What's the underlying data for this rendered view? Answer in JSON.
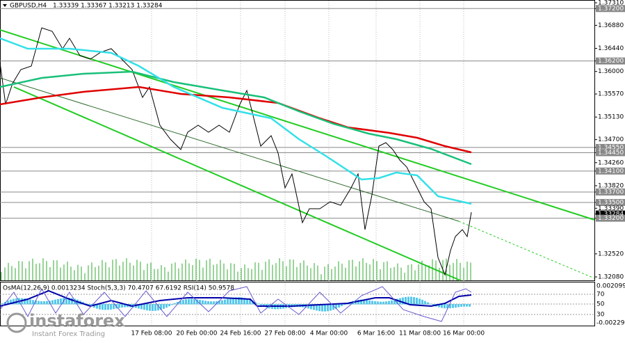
{
  "header": {
    "symbol": "GBPUSD,H4",
    "ohlc": "1.33339 1.33367 1.33213 1.33284"
  },
  "indicator": {
    "caption": "OsMA(12,26,9) 0.0013234  Stoch(5,3,3) 70.4707 67.6192  RSI(14) 50.9578",
    "scale": [
      "0.0020993",
      "70",
      "50",
      "30",
      "-0.002290"
    ]
  },
  "price_axis": [
    {
      "value": 1.3731,
      "label": "1.37310",
      "level": false
    },
    {
      "value": 1.372,
      "label": "1.37200",
      "level": true
    },
    {
      "value": 1.3688,
      "label": "1.36880",
      "level": false
    },
    {
      "value": 1.3644,
      "label": "1.36440",
      "level": false
    },
    {
      "value": 1.362,
      "label": "1.36200",
      "level": true
    },
    {
      "value": 1.36,
      "label": "1.36000",
      "level": false
    },
    {
      "value": 1.3557,
      "label": "1.35570",
      "level": false
    },
    {
      "value": 1.3513,
      "label": "1.35130",
      "level": false
    },
    {
      "value": 1.347,
      "label": "1.34700",
      "level": false
    },
    {
      "value": 1.3455,
      "label": "1.34550",
      "level": true
    },
    {
      "value": 1.3445,
      "label": "1.34450",
      "level": true
    },
    {
      "value": 1.3426,
      "label": "1.34260",
      "level": false
    },
    {
      "value": 1.341,
      "label": "1.34100",
      "level": true
    },
    {
      "value": 1.3382,
      "label": "1.33820",
      "level": false
    },
    {
      "value": 1.337,
      "label": "1.33700",
      "level": true
    },
    {
      "value": 1.335,
      "label": "1.33500",
      "level": true
    },
    {
      "value": 1.3339,
      "label": "1.33390",
      "level": false
    },
    {
      "value": 1.3328,
      "label": "1.33284",
      "level": false,
      "current": true
    },
    {
      "value": 1.332,
      "label": "1.33200",
      "level": true
    },
    {
      "value": 1.3252,
      "label": "1.32520",
      "level": false
    },
    {
      "value": 1.3208,
      "label": "1.32080",
      "level": false
    }
  ],
  "time_axis": [
    "17 Feb 08:00",
    "20 Feb 00:00",
    "24 Feb 16:00",
    "27 Feb 08:00",
    "4 Mar 00:00",
    "6 Mar 16:00",
    "11 Mar 08:00",
    "16 Mar 00:00"
  ],
  "logo": {
    "name": "instaforex",
    "tagline": "Instant Forex Trading"
  }
}
